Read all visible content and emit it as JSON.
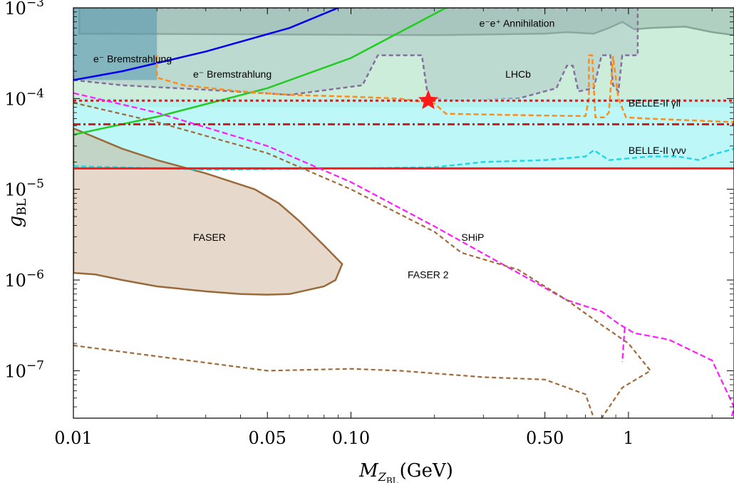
{
  "chart_data": {
    "type": "line",
    "scale": {
      "x": "log",
      "y": "log"
    },
    "xlim": [
      0.01,
      2.4
    ],
    "ylim": [
      3e-08,
      0.001
    ],
    "x_ticks": [
      {
        "value": 0.01,
        "label": "0.01"
      },
      {
        "value": 0.05,
        "label": "0.05"
      },
      {
        "value": 0.1,
        "label": "0.10"
      },
      {
        "value": 0.5,
        "label": "0.50"
      },
      {
        "value": 1,
        "label": "1"
      }
    ],
    "y_ticks": [
      {
        "value": 0.001,
        "mant": "10",
        "exp": "−3"
      },
      {
        "value": 0.0001,
        "mant": "10",
        "exp": "−4"
      },
      {
        "value": 1e-05,
        "mant": "10",
        "exp": "−5"
      },
      {
        "value": 1e-06,
        "mant": "10",
        "exp": "−6"
      },
      {
        "value": 1e-07,
        "mant": "10",
        "exp": "−7"
      }
    ],
    "xlabel": {
      "main": "M",
      "sub": "Z",
      "subsub": "BL",
      "unit": "(GeV)"
    },
    "ylabel": {
      "main": "g",
      "sub": "BL"
    },
    "regions": [
      {
        "label": "e⁻e⁺ Annihilation",
        "color": "#8c8c96",
        "opacity": 0.45,
        "stroke": "#808080",
        "dash": "",
        "points": [
          [
            0.0105,
            0.001
          ],
          [
            0.0105,
            0.00052
          ],
          [
            0.05,
            0.00051
          ],
          [
            0.2,
            0.0005
          ],
          [
            0.5,
            0.00052
          ],
          [
            0.6,
            0.00054
          ],
          [
            0.75,
            0.00052
          ],
          [
            0.85,
            0.0006
          ],
          [
            0.95,
            0.0007
          ],
          [
            1.05,
            0.00058
          ],
          [
            1.2,
            0.0006
          ],
          [
            1.6,
            0.00062
          ],
          [
            2.0,
            0.00054
          ],
          [
            2.4,
            0.0005
          ],
          [
            2.4,
            0.001
          ]
        ]
      },
      {
        "label": "LHCb",
        "color": "#a090c0",
        "opacity": 0.3,
        "stroke": "#7a1a8c",
        "dash": "6,4",
        "points": [
          [
            0.01,
            0.00016
          ],
          [
            0.015,
            0.00014
          ],
          [
            0.03,
            0.000125
          ],
          [
            0.06,
            0.00011
          ],
          [
            0.11,
            0.00014
          ],
          [
            0.125,
            0.0003
          ],
          [
            0.18,
            0.0003
          ],
          [
            0.19,
            0.0001
          ],
          [
            0.25,
            9.6e-05
          ],
          [
            0.4,
            0.0001
          ],
          [
            0.55,
            0.00013
          ],
          [
            0.6,
            0.00023
          ],
          [
            0.63,
            0.00023
          ],
          [
            0.66,
            0.00012
          ],
          [
            0.75,
            0.00013
          ],
          [
            0.8,
            0.0003
          ],
          [
            0.86,
            0.0003
          ],
          [
            0.88,
            0.00014
          ],
          [
            0.92,
            0.00012
          ],
          [
            0.95,
            0.0003
          ],
          [
            1.08,
            0.0003
          ],
          [
            1.08,
            0.001
          ],
          [
            0.01,
            0.001
          ]
        ]
      },
      {
        "label": "",
        "color": "#2060b0",
        "opacity": 0.55,
        "stroke": "none",
        "dash": "",
        "points": [
          [
            0.01,
            0.00016
          ],
          [
            0.02,
            0.00016
          ],
          [
            0.02,
            0.001
          ],
          [
            0.01,
            0.001
          ]
        ]
      },
      {
        "label": "",
        "color": "#90d8b0",
        "opacity": 0.45,
        "stroke": "none",
        "dash": "",
        "points": [
          [
            0.01,
            8e-05
          ],
          [
            2.4,
            8e-05
          ],
          [
            2.4,
            0.001
          ],
          [
            0.01,
            0.001
          ]
        ]
      },
      {
        "label": "",
        "color": "#a8f4f4",
        "opacity": 0.75,
        "stroke": "none",
        "dash": "",
        "points": [
          [
            0.01,
            1.7e-05
          ],
          [
            2.4,
            1.7e-05
          ],
          [
            2.4,
            0.0001
          ],
          [
            0.01,
            0.0001
          ]
        ]
      },
      {
        "label": "FASER",
        "color": "#c8a88a",
        "opacity": 0.45,
        "stroke": "#9a6a3a",
        "dash": "",
        "points": [
          [
            0.01,
            4.7e-05
          ],
          [
            0.015,
            2.8e-05
          ],
          [
            0.02,
            2.1e-05
          ],
          [
            0.03,
            1.5e-05
          ],
          [
            0.045,
            1e-05
          ],
          [
            0.055,
            7e-06
          ],
          [
            0.065,
            4.5e-06
          ],
          [
            0.08,
            2.4e-06
          ],
          [
            0.093,
            1.5e-06
          ],
          [
            0.088,
            1e-06
          ],
          [
            0.08,
            8.5e-07
          ],
          [
            0.06,
            7e-07
          ],
          [
            0.05,
            6.9e-07
          ],
          [
            0.04,
            7e-07
          ],
          [
            0.03,
            7.5e-07
          ],
          [
            0.02,
            8.5e-07
          ],
          [
            0.015,
            1e-06
          ],
          [
            0.012,
            1.15e-06
          ],
          [
            0.01,
            1.2e-06
          ]
        ]
      }
    ],
    "series": [
      {
        "name": "",
        "color": "#0000ee",
        "width": 2.5,
        "dash": "",
        "points": [
          [
            0.01,
            0.00016
          ],
          [
            0.015,
            0.0002
          ],
          [
            0.03,
            0.00033
          ],
          [
            0.06,
            0.0006
          ],
          [
            0.09,
            0.001
          ]
        ]
      },
      {
        "name": "",
        "color": "#22cc22",
        "width": 2.5,
        "dash": "",
        "points": [
          [
            0.01,
            4e-05
          ],
          [
            0.02,
            6.3e-05
          ],
          [
            0.05,
            0.00013
          ],
          [
            0.1,
            0.00028
          ],
          [
            0.22,
            0.001
          ]
        ]
      },
      {
        "name": "",
        "color": "#ff8c1a",
        "width": 2.5,
        "dash": "7,4",
        "points": [
          [
            0.02,
            0.0003
          ],
          [
            0.02,
            0.00017
          ],
          [
            0.025,
            0.00014
          ],
          [
            0.04,
            0.00012
          ],
          [
            0.06,
            0.00011
          ],
          [
            0.1,
            0.000105
          ],
          [
            0.15,
            0.0001
          ],
          [
            0.2,
            8.8e-05
          ],
          [
            0.22,
            6.8e-05
          ],
          [
            0.5,
            6.5e-05
          ],
          [
            0.7,
            6.4e-05
          ],
          [
            0.72,
            0.0001
          ],
          [
            0.72,
            0.0003
          ],
          [
            0.74,
            0.0003
          ],
          [
            0.76,
            6.2e-05
          ],
          [
            0.82,
            6.2e-05
          ],
          [
            0.85,
            7e-05
          ],
          [
            0.88,
            0.00029
          ],
          [
            0.92,
            0.0001
          ],
          [
            0.98,
            6.2e-05
          ],
          [
            1.2,
            6e-05
          ],
          [
            2.4,
            5.5e-05
          ]
        ]
      },
      {
        "name": "BELLE-II γνν",
        "color": "#22d8e8",
        "width": 2.5,
        "dash": "7,4",
        "points": [
          [
            0.01,
            1.8e-05
          ],
          [
            0.03,
            1.65e-05
          ],
          [
            0.1,
            1.7e-05
          ],
          [
            0.2,
            1.75e-05
          ],
          [
            0.3,
            2e-05
          ],
          [
            0.5,
            2.1e-05
          ],
          [
            0.7,
            2.3e-05
          ],
          [
            0.75,
            2.7e-05
          ],
          [
            0.85,
            2.1e-05
          ],
          [
            1.2,
            2.3e-05
          ],
          [
            1.5,
            2.3e-05
          ],
          [
            1.8,
            2.1e-05
          ],
          [
            2.0,
            2.4e-05
          ],
          [
            2.4,
            2.8e-05
          ]
        ]
      },
      {
        "name": "",
        "color": "#ff1a1a",
        "width": 3,
        "dash": "",
        "points": [
          [
            0.01,
            1.7e-05
          ],
          [
            2.4,
            1.7e-05
          ]
        ]
      },
      {
        "name": "",
        "color": "#dd1a1a",
        "width": 3,
        "dash": "10,4,3,4",
        "points": [
          [
            0.01,
            5.2e-05
          ],
          [
            2.4,
            5.2e-05
          ]
        ]
      },
      {
        "name": "BELLE-II γll",
        "color": "#dd1a1a",
        "width": 3,
        "dash": "4,4",
        "points": [
          [
            0.01,
            9.5e-05
          ],
          [
            2.4,
            9.5e-05
          ]
        ]
      },
      {
        "name": "SHiP",
        "color": "#ff1aff",
        "width": 2.2,
        "dash": "8,4",
        "points": [
          [
            0.01,
            0.000115
          ],
          [
            0.02,
            7e-05
          ],
          [
            0.05,
            3e-05
          ],
          [
            0.1,
            1.2e-05
          ],
          [
            0.2,
            3.9e-06
          ],
          [
            0.4,
            1.2e-06
          ],
          [
            0.6,
            6e-07
          ],
          [
            0.8,
            4.5e-07
          ],
          [
            0.92,
            3.3e-07
          ],
          [
            1.05,
            2.6e-07
          ],
          [
            1.4,
            2.2e-07
          ],
          [
            2.0,
            1.3e-07
          ],
          [
            2.4,
            4e-08
          ],
          [
            2.35,
            3e-08
          ]
        ]
      },
      {
        "name": "",
        "color": "#ff1aff",
        "width": 2.2,
        "dash": "8,4",
        "points": [
          [
            0.97,
            3e-07
          ],
          [
            0.96,
            2e-07
          ],
          [
            0.95,
            1.25e-07
          ]
        ]
      },
      {
        "name": "FASER 2",
        "color": "#a06a38",
        "width": 2.2,
        "dash": "6,4",
        "points": [
          [
            0.01,
            9e-05
          ],
          [
            0.02,
            5.5e-05
          ],
          [
            0.05,
            2.5e-05
          ],
          [
            0.1,
            1e-05
          ],
          [
            0.2,
            3.4e-06
          ],
          [
            0.25,
            2e-06
          ],
          [
            0.4,
            1.3e-06
          ],
          [
            0.6,
            6e-07
          ],
          [
            0.8,
            3.2e-07
          ],
          [
            1.0,
            2e-07
          ],
          [
            1.2,
            1e-07
          ],
          [
            0.95,
            6.5e-08
          ],
          [
            0.8,
            3e-08
          ]
        ]
      },
      {
        "name": "",
        "color": "#a06a38",
        "width": 2.2,
        "dash": "6,4",
        "points": [
          [
            0.01,
            1.9e-07
          ],
          [
            0.05,
            1e-07
          ],
          [
            0.1,
            1.05e-07
          ],
          [
            0.15,
            1e-07
          ],
          [
            0.3,
            8.5e-08
          ],
          [
            0.5,
            8e-08
          ],
          [
            0.7,
            5.5e-08
          ],
          [
            0.75,
            3e-08
          ]
        ]
      }
    ],
    "annotations": [
      {
        "text": "e⁻ Bremstrahlung",
        "x": 0.0118,
        "y": 0.00025
      },
      {
        "text": "e⁻ Bremstrahlung",
        "x": 0.027,
        "y": 0.00017
      },
      {
        "text": "e⁻e⁺ Annihilation",
        "x": 0.29,
        "y": 0.00062
      },
      {
        "text": "LHCb",
        "x": 0.36,
        "y": 0.00017
      },
      {
        "text": "BELLE-II γll",
        "x": 1.0,
        "y": 8.2e-05
      },
      {
        "text": "BELLE-II γνν",
        "x": 1.0,
        "y": 2.45e-05
      },
      {
        "text": "FASER",
        "x": 0.027,
        "y": 2.7e-06
      },
      {
        "text": "SHiP",
        "x": 0.25,
        "y": 2.7e-06
      },
      {
        "text": "FASER 2",
        "x": 0.16,
        "y": 1.05e-06
      }
    ],
    "marker": {
      "shape": "star",
      "color": "#ff1a1a",
      "x": 0.19,
      "y": 9.5e-05
    },
    "grid": false
  }
}
